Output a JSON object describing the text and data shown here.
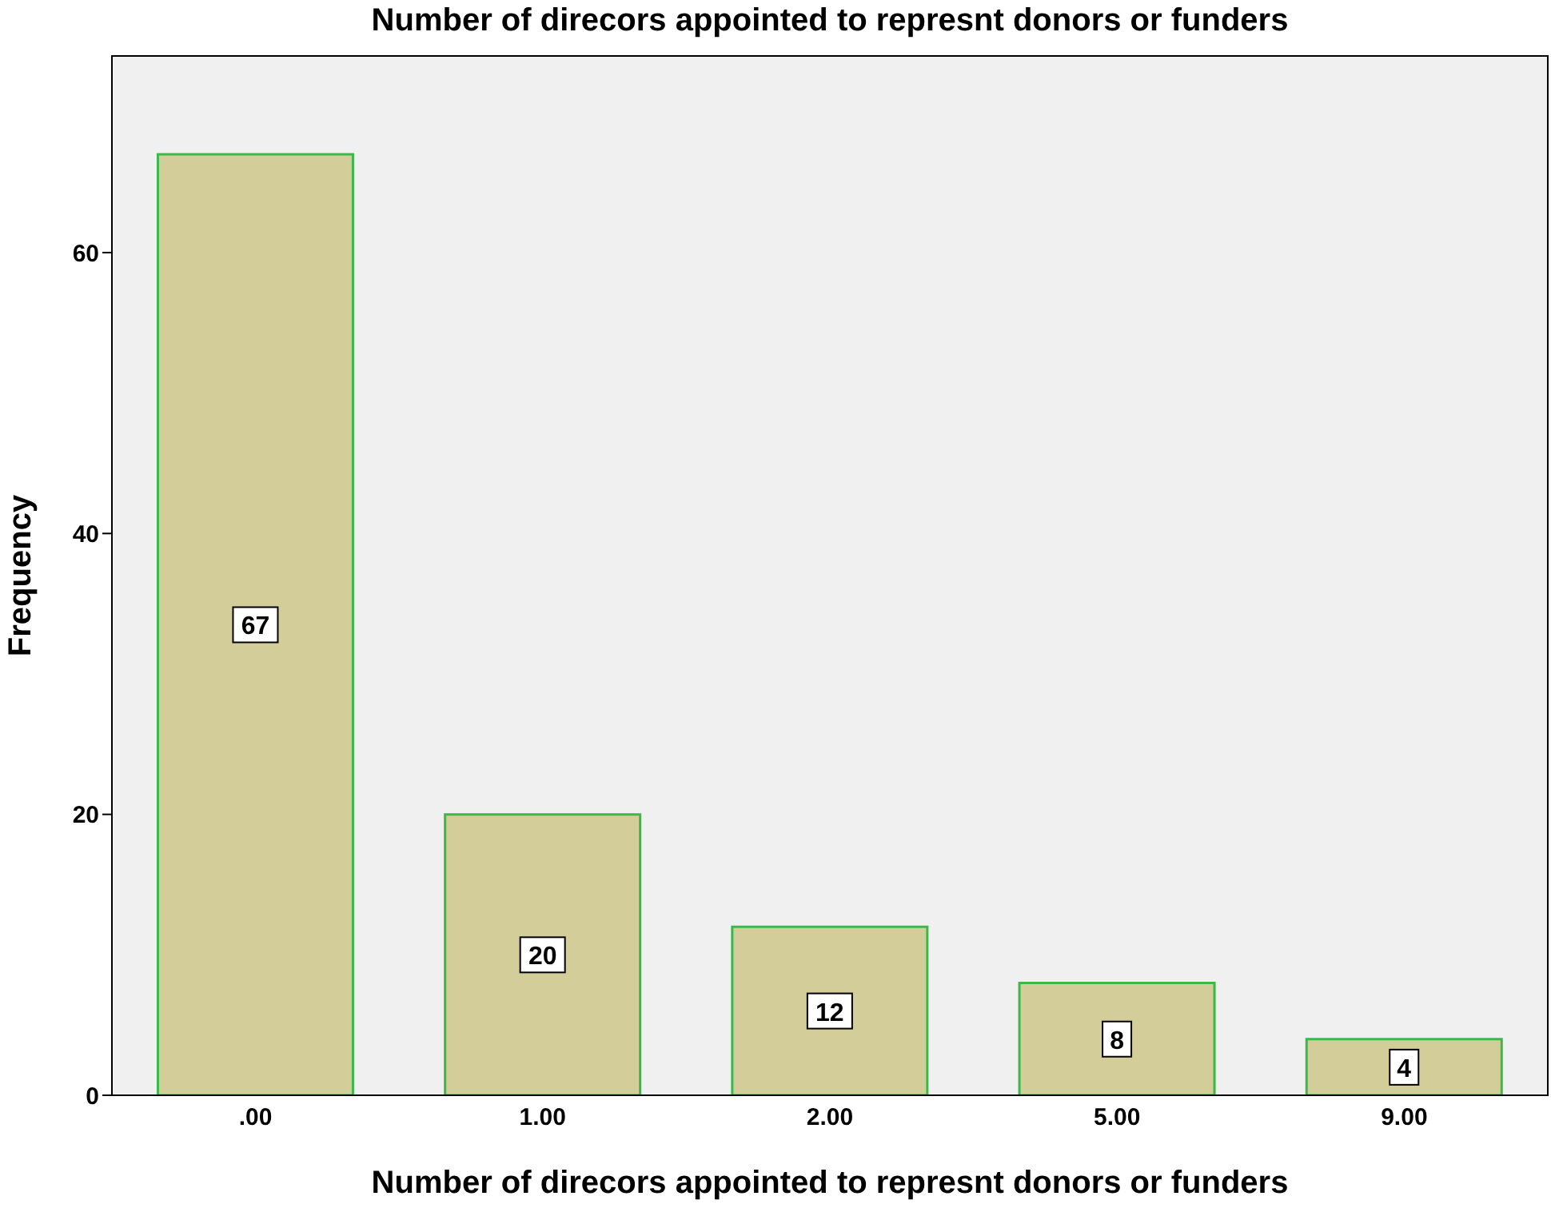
{
  "chart_data": {
    "type": "bar",
    "title": "Number of direcors appointed to represnt donors or funders",
    "xlabel": "Number of direcors appointed to represnt donors or funders",
    "ylabel": "Frequency",
    "categories": [
      ".00",
      "1.00",
      "2.00",
      "5.00",
      "9.00"
    ],
    "values": [
      67,
      20,
      12,
      8,
      4
    ],
    "color": "#d3ce99",
    "ylim": [
      0,
      74
    ],
    "yticks": [
      0,
      20,
      40,
      60
    ],
    "data_labels": true
  }
}
